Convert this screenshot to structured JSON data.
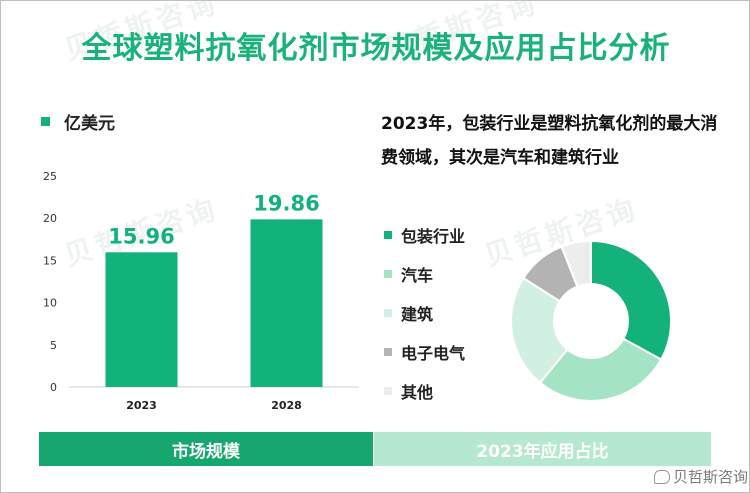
{
  "title": "全球塑料抗氧化剂市场规模及应用占比分析",
  "unit_label": "亿美元",
  "headline": "2023年，包装行业是塑料抗氧化剂的最大消费领域，其次是汽车和建筑行业",
  "footer": {
    "left": "市场规模",
    "right": "2023年应用占比"
  },
  "brand": "贝哲斯咨询",
  "watermark": "贝哲斯咨询",
  "colors": {
    "title": "#19b37a",
    "bar": "#12b27a",
    "footer_left": "#16a76f",
    "footer_right": "#b5e8cf"
  },
  "chart_data": [
    {
      "type": "bar",
      "categories": [
        "2023",
        "2028"
      ],
      "values": [
        15.96,
        19.86
      ],
      "data_labels": [
        "15.96",
        "19.86"
      ],
      "ylim": [
        0,
        25
      ],
      "yticks": [
        0,
        5,
        10,
        15,
        20,
        25
      ],
      "ylabel": "",
      "xlabel": "",
      "grid": false,
      "color": "#12b27a"
    },
    {
      "type": "pie",
      "donut": true,
      "legend_position": "left",
      "slices": [
        {
          "name": "包装行业",
          "value": 33,
          "color": "#12b27a"
        },
        {
          "name": "汽车",
          "value": 28,
          "color": "#a5e3c5"
        },
        {
          "name": "建筑",
          "value": 23,
          "color": "#d2f0e1"
        },
        {
          "name": "电子电气",
          "value": 10,
          "color": "#b3b3b3"
        },
        {
          "name": "其他",
          "value": 6,
          "color": "#ededed"
        }
      ]
    }
  ]
}
